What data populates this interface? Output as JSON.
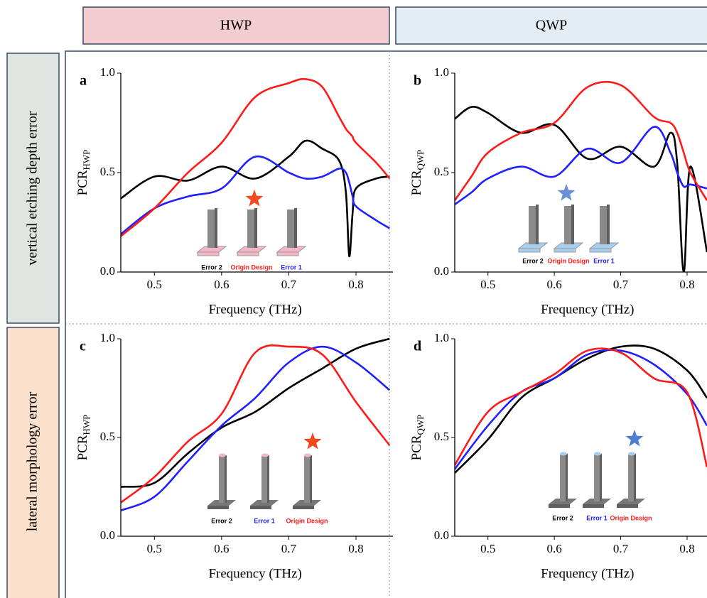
{
  "header": {
    "columns": [
      "HWP",
      "QWP"
    ],
    "rows": [
      "vertical etching depth error",
      "lateral morphology error"
    ]
  },
  "chart_data": [
    {
      "type": "line",
      "label": "a",
      "y_label": "PCR",
      "y_label_sub": "HWP",
      "x_label": "Frequency (THz)",
      "x": [
        0.45,
        0.5,
        0.55,
        0.6,
        0.65,
        0.7,
        0.725,
        0.75,
        0.775,
        0.785,
        0.79,
        0.795,
        0.8,
        0.83,
        0.85
      ],
      "series": [
        {
          "color": "#000000",
          "values": [
            0.37,
            0.48,
            0.46,
            0.53,
            0.47,
            0.58,
            0.66,
            0.62,
            0.56,
            0.4,
            0.08,
            0.3,
            0.42,
            0.47,
            0.48
          ]
        },
        {
          "color": "#1f1fff",
          "values": [
            0.19,
            0.32,
            0.38,
            0.42,
            0.58,
            0.5,
            0.47,
            0.48,
            0.52,
            0.5,
            0.45,
            0.38,
            0.33,
            0.26,
            0.22
          ]
        },
        {
          "color": "#ff1a1a",
          "values": [
            0.18,
            0.32,
            0.5,
            0.65,
            0.88,
            0.95,
            0.97,
            0.93,
            0.78,
            0.72,
            0.7,
            0.68,
            0.65,
            0.55,
            0.47
          ]
        }
      ],
      "xlim": [
        0.45,
        0.855
      ],
      "ylim": [
        0,
        1
      ],
      "xticks": [
        0.5,
        0.6,
        0.7,
        0.8
      ],
      "yticks": [
        {
          "value": 0,
          "label": "0.0"
        },
        0.5,
        {
          "value": 1,
          "label": "1.0"
        }
      ],
      "inset_labels": [
        "Error 2",
        "Origin Design",
        "Error 1"
      ],
      "inset_label_colors": [
        "#000000",
        "#ff1a1a",
        "#1f1fff"
      ],
      "star_color": "#f04a1e"
    },
    {
      "type": "line",
      "label": "b",
      "y_label": "PCR",
      "y_label_sub": "QWP",
      "x_label": "Frequency (THz)",
      "x": [
        0.45,
        0.475,
        0.5,
        0.55,
        0.6,
        0.65,
        0.7,
        0.75,
        0.775,
        0.785,
        0.795,
        0.805,
        0.83
      ],
      "series": [
        {
          "color": "#000000",
          "values": [
            0.77,
            0.83,
            0.8,
            0.7,
            0.74,
            0.57,
            0.63,
            0.53,
            0.7,
            0.55,
            0.0,
            0.53,
            0.1
          ]
        },
        {
          "color": "#1f1fff",
          "values": [
            0.34,
            0.4,
            0.47,
            0.53,
            0.48,
            0.62,
            0.55,
            0.73,
            0.6,
            0.5,
            0.43,
            0.44,
            0.42
          ]
        },
        {
          "color": "#ff1a1a",
          "values": [
            0.36,
            0.48,
            0.6,
            0.7,
            0.75,
            0.93,
            0.94,
            0.78,
            0.75,
            0.7,
            0.6,
            0.5,
            0.36
          ]
        }
      ],
      "xlim": [
        0.45,
        0.83
      ],
      "ylim": [
        0,
        1
      ],
      "xticks": [
        0.5,
        0.6,
        0.7,
        0.8
      ],
      "yticks": [
        {
          "value": 0,
          "label": "0.0"
        },
        0.5,
        {
          "value": 1,
          "label": "1.0"
        }
      ],
      "inset_labels": [
        "Error 2",
        "Origin Design",
        "Error 1"
      ],
      "inset_label_colors": [
        "#000000",
        "#ff1a1a",
        "#1f1fff"
      ],
      "star_color": "#6b8fd6"
    },
    {
      "type": "line",
      "label": "c",
      "y_label": "PCR",
      "y_label_sub": "HWP",
      "x_label": "Frequency (THz)",
      "x": [
        0.45,
        0.5,
        0.55,
        0.6,
        0.65,
        0.7,
        0.75,
        0.8,
        0.85
      ],
      "series": [
        {
          "color": "#000000",
          "values": [
            0.25,
            0.27,
            0.42,
            0.55,
            0.63,
            0.75,
            0.85,
            0.95,
            1.0
          ]
        },
        {
          "color": "#1f1fff",
          "values": [
            0.13,
            0.2,
            0.38,
            0.56,
            0.7,
            0.88,
            0.96,
            0.88,
            0.74
          ]
        },
        {
          "color": "#ff1a1a",
          "values": [
            0.17,
            0.3,
            0.48,
            0.62,
            0.93,
            0.96,
            0.92,
            0.68,
            0.46
          ]
        }
      ],
      "xlim": [
        0.45,
        0.855
      ],
      "ylim": [
        0,
        1
      ],
      "xticks": [
        0.5,
        0.6,
        0.7,
        0.8
      ],
      "yticks": [
        {
          "value": 0,
          "label": "0.0"
        },
        0.5,
        {
          "value": 1,
          "label": "1.0"
        }
      ],
      "inset_labels": [
        "Error 2",
        "Error 1",
        "Origin Design"
      ],
      "inset_label_colors": [
        "#000000",
        "#1f1fff",
        "#ff1a1a"
      ],
      "star_color": "#f04a1e"
    },
    {
      "type": "line",
      "label": "d",
      "y_label": "PCR",
      "y_label_sub": "QWP",
      "x_label": "Frequency (THz)",
      "x": [
        0.45,
        0.5,
        0.55,
        0.6,
        0.65,
        0.7,
        0.75,
        0.8,
        0.83
      ],
      "series": [
        {
          "color": "#000000",
          "values": [
            0.32,
            0.49,
            0.7,
            0.8,
            0.9,
            0.96,
            0.95,
            0.84,
            0.7
          ]
        },
        {
          "color": "#1f1fff",
          "values": [
            0.34,
            0.56,
            0.73,
            0.8,
            0.92,
            0.94,
            0.87,
            0.72,
            0.56
          ]
        },
        {
          "color": "#ff1a1a",
          "values": [
            0.36,
            0.63,
            0.73,
            0.82,
            0.94,
            0.93,
            0.8,
            0.73,
            0.35
          ]
        }
      ],
      "xlim": [
        0.45,
        0.83
      ],
      "ylim": [
        0,
        1
      ],
      "xticks": [
        0.5,
        0.6,
        0.7,
        0.8
      ],
      "yticks": [
        {
          "value": 0,
          "label": "0.0"
        },
        0.5,
        {
          "value": 1,
          "label": "1.0"
        }
      ],
      "inset_labels": [
        "Error 2",
        "Error 1",
        "Origin Design"
      ],
      "inset_label_colors": [
        "#000000",
        "#1f1fff",
        "#ff1a1a"
      ],
      "star_color": "#4f7fd0"
    }
  ]
}
